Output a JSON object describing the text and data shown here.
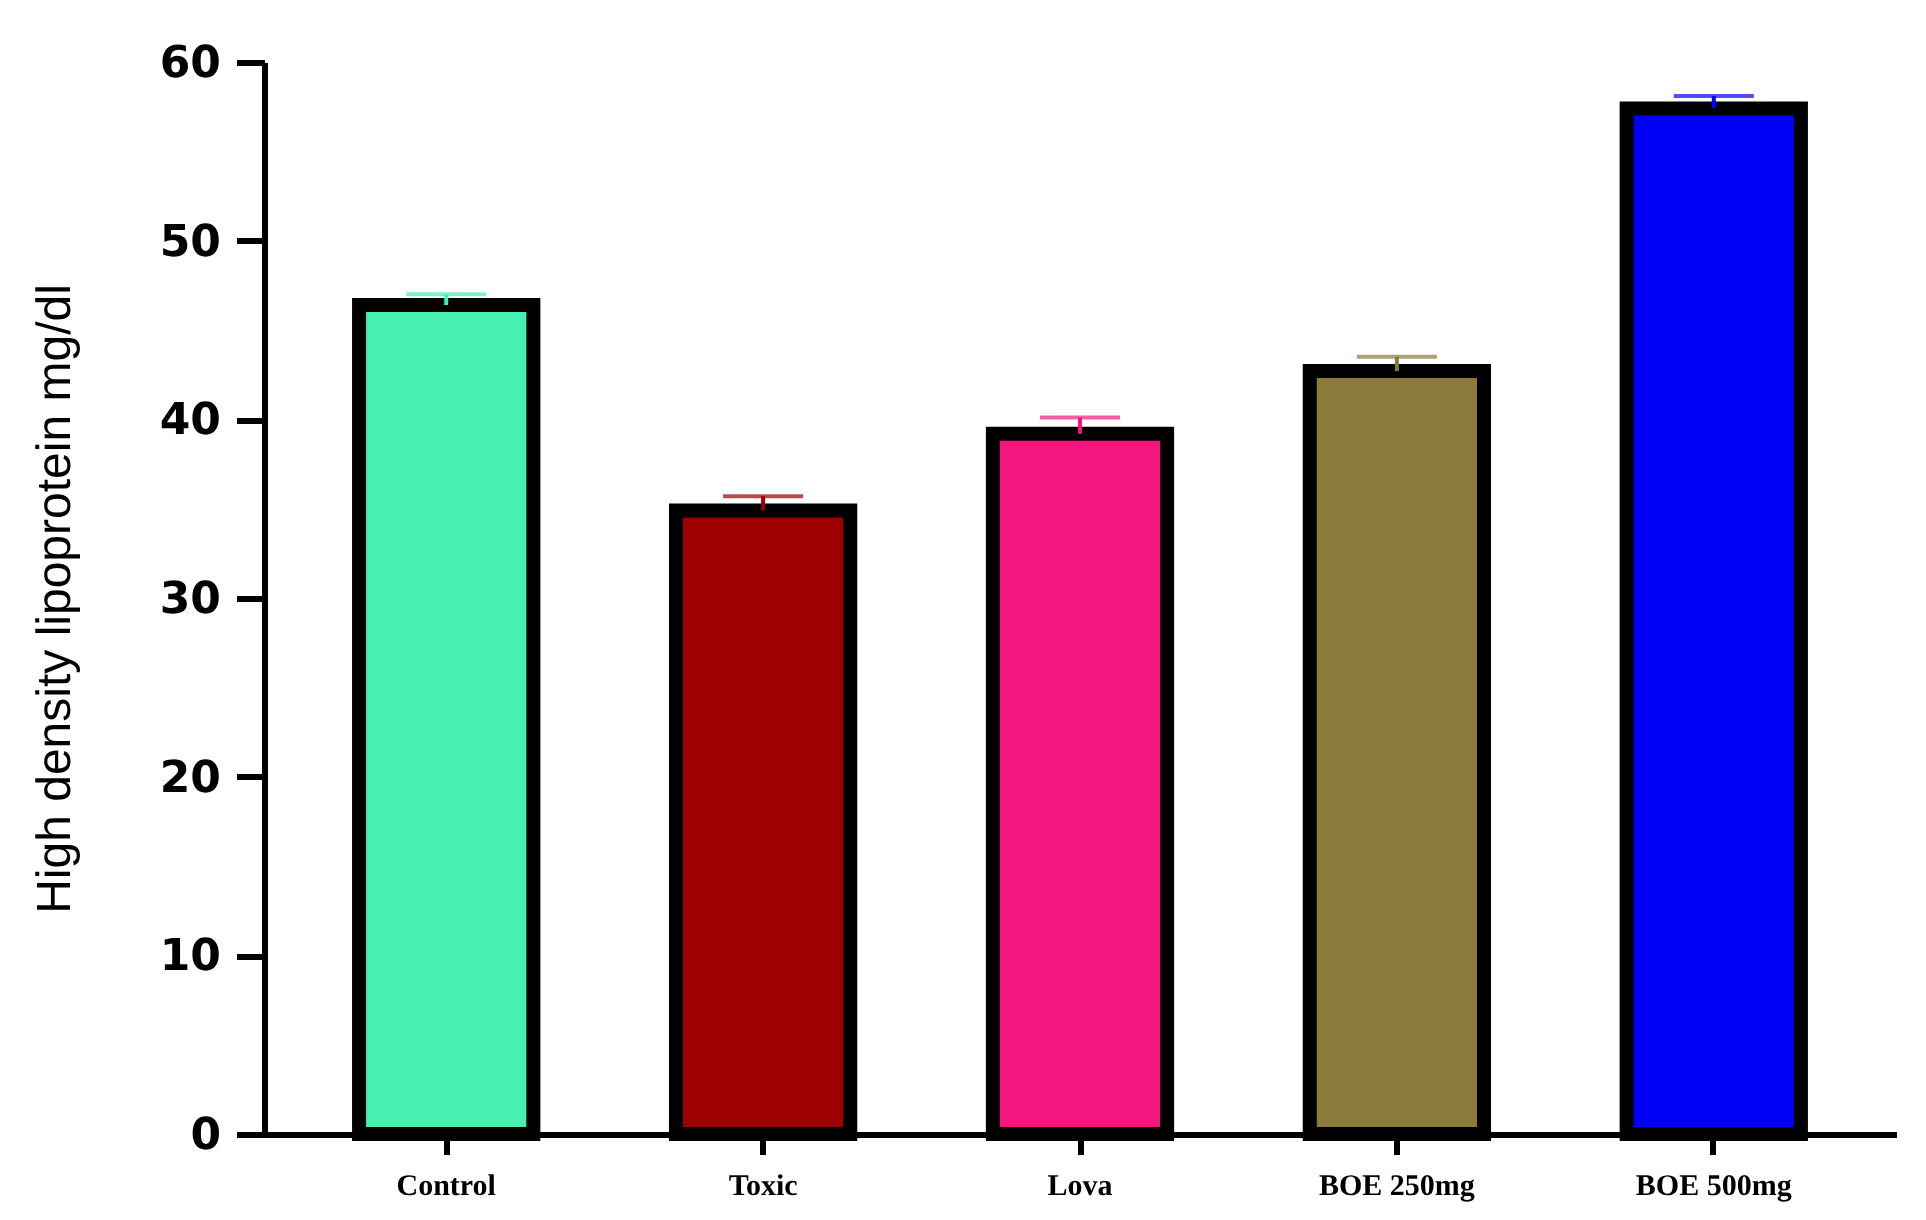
{
  "chart_data": {
    "type": "bar",
    "ylabel": "High density lipoprotein mg/dl",
    "categories": [
      "Control",
      "Toxic",
      "Lova",
      "BOE 250mg",
      "BOE 500mg"
    ],
    "values": [
      46.4,
      34.9,
      39.2,
      42.7,
      57.4
    ],
    "colors": [
      "#46f0b0",
      "#9e0000",
      "#f5157e",
      "#8b7b3a",
      "#0000fa"
    ],
    "errors": [
      [
        46.4,
        47.0
      ],
      [
        34.9,
        35.7
      ],
      [
        39.2,
        40.1
      ],
      [
        42.7,
        43.5
      ],
      [
        57.4,
        58.1
      ]
    ],
    "ylim": [
      0,
      60
    ],
    "yticks": [
      0,
      10,
      20,
      30,
      40,
      50,
      60
    ],
    "grid": false
  }
}
